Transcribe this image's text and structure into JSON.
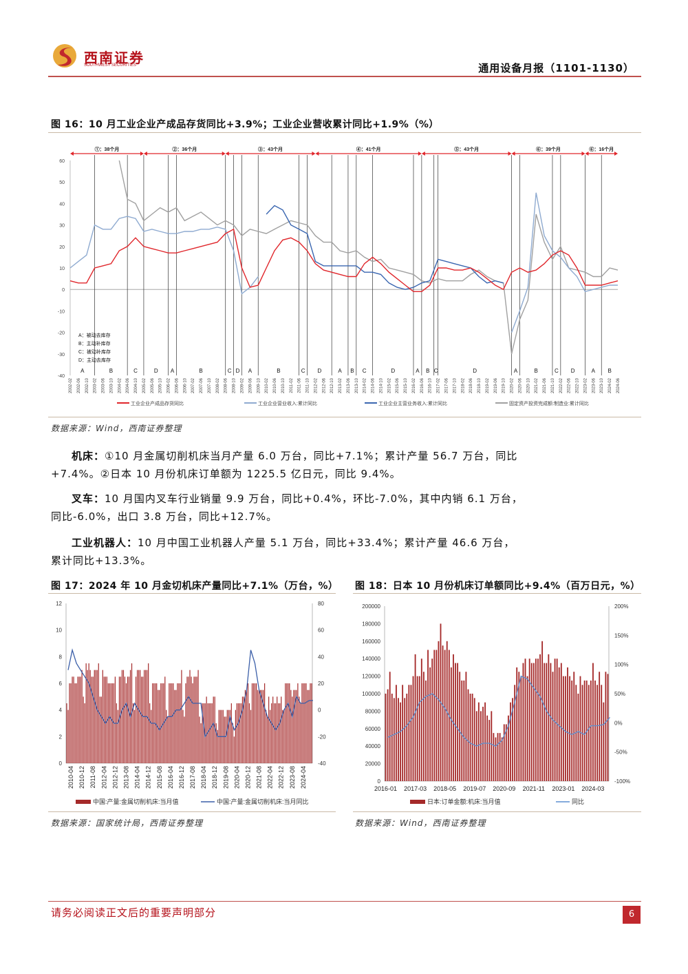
{
  "header": {
    "logo_cn": "西南证券",
    "logo_en": "SOUTHWEST SECURITIES",
    "doc_title": "通用设备月报（1101-1130）",
    "brand_color": "#b5121b"
  },
  "fig16": {
    "caption": "图 16：10 月工业企业产成品存货同比+3.9%；工业企业营收累计同比+1.9%（%）",
    "source": "数据来源：Wind，西南证券整理",
    "chart_data": {
      "type": "line",
      "yticks": [
        60,
        50,
        40,
        30,
        20,
        10,
        0,
        -10,
        -20,
        -30,
        -40
      ],
      "ylim": [
        -40,
        60
      ],
      "x": [
        "2002-02",
        "2002-06",
        "2002-10",
        "2003-02",
        "2003-06",
        "2003-10",
        "2004-02",
        "2004-06",
        "2004-10",
        "2005-02",
        "2005-06",
        "2005-10",
        "2006-02",
        "2006-06",
        "2006-10",
        "2007-02",
        "2007-06",
        "2007-10",
        "2008-02",
        "2008-06",
        "2008-10",
        "2009-02",
        "2009-06",
        "2009-10",
        "2010-02",
        "2010-06",
        "2010-10",
        "2011-02",
        "2011-06",
        "2011-10",
        "2012-02",
        "2012-06",
        "2012-10",
        "2013-02",
        "2013-06",
        "2013-10",
        "2014-02",
        "2014-06",
        "2014-10",
        "2015-02",
        "2015-06",
        "2015-10",
        "2016-02",
        "2016-06",
        "2016-10",
        "2017-02",
        "2017-06",
        "2017-10",
        "2018-02",
        "2018-06",
        "2018-10",
        "2019-02",
        "2019-06",
        "2019-10",
        "2020-02",
        "2020-06",
        "2020-10",
        "2021-02",
        "2021-06",
        "2021-10",
        "2022-02",
        "2022-06",
        "2022-10",
        "2023-02",
        "2023-06",
        "2023-10",
        "2024-02",
        "2024-06"
      ],
      "series": [
        {
          "name": "工业企业产成品存货同比",
          "color": "#e0262b",
          "values": [
            4,
            3,
            3,
            10,
            11,
            12,
            18,
            20,
            24,
            20,
            19,
            18,
            17,
            17,
            18,
            19,
            20,
            21,
            22,
            26,
            28,
            10,
            1,
            2,
            10,
            18,
            23,
            24,
            22,
            18,
            12,
            9,
            8,
            7,
            6,
            6,
            12,
            15,
            12,
            8,
            5,
            2,
            -1,
            -1,
            2,
            10,
            10,
            9,
            9,
            10,
            8,
            5,
            2,
            0,
            8,
            10,
            8,
            9,
            12,
            16,
            18,
            16,
            10,
            2,
            2,
            2,
            3,
            4
          ]
        },
        {
          "name": "工业企业营业收入:累计同比",
          "color": "#8eaad0",
          "values": [
            10,
            13,
            16,
            30,
            28,
            28,
            33,
            34,
            33,
            27,
            28,
            27,
            26,
            26,
            27,
            27,
            28,
            28,
            29,
            28,
            18,
            -2,
            1,
            6,
            null,
            null,
            null,
            null,
            null,
            null,
            null,
            null,
            null,
            null,
            null,
            null,
            null,
            null,
            null,
            null,
            null,
            null,
            null,
            null,
            null,
            null,
            null,
            null,
            null,
            null,
            null,
            null,
            null,
            null,
            -20,
            -10,
            1,
            45,
            25,
            18,
            15,
            10,
            6,
            -1,
            0,
            1,
            2,
            2
          ]
        },
        {
          "name": "工业企业主营业务收入:累计同比",
          "color": "#3a66b0",
          "values": [
            null,
            null,
            null,
            null,
            null,
            null,
            null,
            null,
            null,
            null,
            null,
            null,
            null,
            null,
            null,
            null,
            null,
            null,
            null,
            null,
            null,
            null,
            null,
            null,
            35,
            39,
            37,
            30,
            28,
            26,
            13,
            11,
            11,
            11,
            11,
            11,
            8,
            8,
            7,
            3,
            1,
            0,
            1,
            3,
            4,
            14,
            13,
            12,
            11,
            10,
            6,
            3,
            4,
            3,
            null,
            null,
            null,
            null,
            null,
            null,
            null,
            null,
            null,
            null,
            null,
            null,
            null,
            null
          ]
        },
        {
          "name": "固定资产投资完成额:制造业:累计同比",
          "color": "#a0a0a0",
          "values": [
            null,
            null,
            null,
            null,
            null,
            null,
            60,
            42,
            40,
            32,
            35,
            38,
            36,
            38,
            32,
            34,
            36,
            33,
            30,
            32,
            30,
            25,
            28,
            27,
            26,
            28,
            30,
            32,
            31,
            30,
            25,
            22,
            22,
            18,
            17,
            18,
            15,
            13,
            14,
            10,
            9,
            8,
            7,
            4,
            3,
            5,
            4,
            4,
            4,
            7,
            9,
            6,
            4,
            3,
            -30,
            -14,
            -5,
            35,
            22,
            14,
            20,
            10,
            9,
            8,
            6,
            6,
            10,
            9
          ]
        }
      ],
      "cycles": [
        {
          "label": "①：38个月",
          "start": "2002-02",
          "end": "2005-02"
        },
        {
          "label": "②：36个月",
          "start": "2005-02",
          "end": "2008-06"
        },
        {
          "label": "③：43个月",
          "start": "2008-06",
          "end": "2012-02"
        },
        {
          "label": "④：41个月",
          "start": "2012-02",
          "end": "2016-06"
        },
        {
          "label": "⑤：43个月",
          "start": "2016-06",
          "end": "2020-02"
        },
        {
          "label": "⑥：39个月",
          "start": "2020-02",
          "end": "2023-02"
        },
        {
          "label": "⑥：16个月",
          "start": "2023-02",
          "end": "2024-06"
        }
      ],
      "phases": [
        {
          "label": "A",
          "start": "2002-02"
        },
        {
          "label": "B",
          "start": "2003-02"
        },
        {
          "label": "C",
          "start": "2004-06"
        },
        {
          "label": "D",
          "start": "2005-02"
        },
        {
          "label": "A",
          "start": "2006-02"
        },
        {
          "label": "B",
          "start": "2006-06"
        },
        {
          "label": "C",
          "start": "2008-06"
        },
        {
          "label": "D",
          "start": "2008-10"
        },
        {
          "label": "A",
          "start": "2009-02"
        },
        {
          "label": "B",
          "start": "2009-10"
        },
        {
          "label": "C",
          "start": "2011-06"
        },
        {
          "label": "D",
          "start": "2011-10"
        },
        {
          "label": "A",
          "start": "2012-10"
        },
        {
          "label": "B",
          "start": "2013-06"
        },
        {
          "label": "C",
          "start": "2013-10"
        },
        {
          "label": "D",
          "start": "2014-06"
        },
        {
          "label": "A",
          "start": "2016-02"
        },
        {
          "label": "B",
          "start": "2016-06"
        },
        {
          "label": "C",
          "start": "2016-12"
        },
        {
          "label": "D",
          "start": "2017-02"
        },
        {
          "label": "A",
          "start": "2020-02"
        },
        {
          "label": "B",
          "start": "2020-06"
        },
        {
          "label": "C",
          "start": "2021-10"
        },
        {
          "label": "D",
          "start": "2022-02"
        },
        {
          "label": "A",
          "start": "2023-02"
        },
        {
          "label": "B",
          "start": "2023-10"
        }
      ],
      "phase_legend": [
        "A：被动去库存",
        "B：主动补库存",
        "C：被动补库存",
        "D：主动去库存"
      ]
    }
  },
  "paragraphs": [
    {
      "title": "机床：",
      "text": "①10 月金属切削机床当月产量 6.0 万台，同比+7.1%；累计产量 56.7 万台，同比+7.4%。②日本 10 月份机床订单额为 1225.5 亿日元，同比 9.4%。"
    },
    {
      "title": "叉车：",
      "text": "10 月国内叉车行业销量 9.9 万台，同比+0.4%，环比-7.0%，其中内销 6.1 万台，同比-6.0%，出口 3.8 万台，同比+12.7%。"
    },
    {
      "title": "工业机器人：",
      "text": "10 月中国工业机器人产量 5.1 万台，同比+33.4%；累计产量 46.6 万台，累计同比+13.3%。"
    }
  ],
  "fig17": {
    "caption": "图 17：2024 年 10 月金切机床产量同比+7.1%（万台，%）",
    "source": "数据来源：国家统计局，西南证券整理",
    "chart_data": {
      "type": "bar+line",
      "y_left_ticks": [
        12,
        10,
        8,
        6,
        4,
        2,
        0
      ],
      "y_left_lim": [
        0,
        12
      ],
      "y_right_ticks": [
        80,
        60,
        40,
        20,
        0,
        -20,
        -40
      ],
      "y_right_lim": [
        -40,
        80
      ],
      "xticks": [
        "2010-04",
        "2010-12",
        "2011-08",
        "2012-04",
        "2012-12",
        "2013-08",
        "2014-04",
        "2014-12",
        "2015-08",
        "2016-04",
        "2016-12",
        "2017-08",
        "2018-04",
        "2018-12",
        "2019-08",
        "2020-04",
        "2020-12",
        "2021-08",
        "2022-04",
        "2022-12",
        "2023-08",
        "2024-04"
      ],
      "x_start": "2010-01",
      "x_end": "2024-10",
      "bars": {
        "name": "中国:产量:金属切削机床:当月值",
        "color": "#a52a2a",
        "frequency": "monthly",
        "values": [
          4.5,
          4,
          6,
          6,
          6.5,
          6.5,
          6,
          6,
          6.5,
          6.5,
          6.5,
          7,
          5,
          4.5,
          7.5,
          7,
          7.5,
          7,
          6.5,
          6.5,
          7,
          7,
          7,
          7.5,
          5,
          5,
          7,
          6.5,
          6.5,
          6.5,
          6,
          6,
          6,
          6,
          6,
          6.5,
          4.5,
          4,
          6.5,
          6.5,
          7,
          7,
          6.5,
          6,
          6.5,
          6.5,
          7,
          7.5,
          4.5,
          4,
          6.5,
          7,
          7,
          7,
          6.5,
          6.5,
          7,
          7,
          7,
          7.5,
          4.5,
          4,
          6,
          6,
          6,
          6,
          5.5,
          5.5,
          6,
          6,
          6,
          6.5,
          4,
          3.5,
          6,
          6,
          6,
          6,
          5.5,
          5.5,
          6,
          6,
          6,
          7,
          4,
          3.5,
          6,
          6.5,
          6.5,
          7,
          6.5,
          6,
          6.5,
          6.5,
          6.5,
          7,
          3.5,
          3,
          4.5,
          4.5,
          4.5,
          5,
          4.5,
          4.5,
          4.5,
          4.5,
          5,
          5,
          3,
          2.5,
          4,
          4,
          4,
          4,
          3.5,
          3.5,
          4,
          4,
          4,
          4.5,
          3,
          2,
          4,
          4.5,
          4.5,
          4.5,
          4.5,
          5,
          5,
          5.5,
          5.5,
          6,
          4.5,
          4,
          6,
          6,
          6,
          6,
          5.5,
          5.5,
          5.5,
          5.5,
          5.5,
          6,
          4,
          3.5,
          5,
          4,
          4.5,
          5,
          4.5,
          4.5,
          5,
          4.5,
          4.5,
          5,
          4,
          4,
          6,
          6,
          6,
          6,
          5.5,
          5,
          5.5,
          5.5,
          5.5,
          6,
          5,
          4.5,
          6,
          6,
          6,
          6,
          5.5,
          5.5,
          6,
          6
        ]
      },
      "line": {
        "name": "中国:产量:金属切削机床:当月同比",
        "color": "#3a5ea8",
        "frequency": "quarterly",
        "values": [
          30,
          45,
          35,
          30,
          25,
          20,
          10,
          0,
          -5,
          -10,
          -5,
          -10,
          -10,
          0,
          5,
          -5,
          5,
          0,
          -5,
          -5,
          -10,
          -10,
          -15,
          -10,
          -5,
          -5,
          0,
          0,
          5,
          10,
          5,
          5,
          5,
          -20,
          -15,
          -10,
          -20,
          -20,
          -20,
          -5,
          -15,
          -10,
          0,
          15,
          45,
          35,
          15,
          5,
          -5,
          -10,
          -15,
          -10,
          0,
          5,
          -5,
          10,
          5,
          5,
          7,
          7.1
        ]
      }
    }
  },
  "fig18": {
    "caption": "图 18：日本 10 月份机床订单额同比+9.4%（百万日元，%）",
    "source": "数据来源：Wind，西南证券整理",
    "chart_data": {
      "type": "bar+line",
      "y_left_ticks": [
        200000,
        180000,
        160000,
        140000,
        120000,
        100000,
        80000,
        60000,
        40000,
        20000,
        0
      ],
      "y_left_lim": [
        0,
        200000
      ],
      "y_right_ticks": [
        "200%",
        "150%",
        "100%",
        "50%",
        "0%",
        "-50%",
        "-100%"
      ],
      "y_right_lim": [
        -100,
        200
      ],
      "xticks": [
        "2016-01",
        "2017-03",
        "2018-05",
        "2019-07",
        "2020-09",
        "2021-11",
        "2023-01",
        "2024-03"
      ],
      "x_start": "2016-01",
      "x_end": "2024-10",
      "bars": {
        "name": "日本:订单金额:机床:当月值",
        "color": "#a52a2a",
        "frequency": "monthly",
        "values": [
          100000,
          105000,
          125000,
          100000,
          95000,
          110000,
          95000,
          90000,
          110000,
          95000,
          100000,
          110000,
          110000,
          120000,
          145000,
          120000,
          120000,
          140000,
          125000,
          115000,
          150000,
          130000,
          140000,
          150000,
          150000,
          160000,
          180000,
          155000,
          150000,
          160000,
          150000,
          130000,
          145000,
          135000,
          135000,
          125000,
          115000,
          115000,
          125000,
          105000,
          100000,
          100000,
          95000,
          80000,
          90000,
          80000,
          85000,
          90000,
          75000,
          70000,
          80000,
          55000,
          50000,
          55000,
          55000,
          50000,
          65000,
          65000,
          75000,
          90000,
          95000,
          110000,
          130000,
          125000,
          120000,
          135000,
          140000,
          120000,
          140000,
          135000,
          135000,
          140000,
          140000,
          145000,
          160000,
          135000,
          135000,
          145000,
          135000,
          125000,
          140000,
          140000,
          130000,
          135000,
          120000,
          120000,
          130000,
          120000,
          115000,
          125000,
          110000,
          100000,
          120000,
          110000,
          115000,
          115000,
          110000,
          115000,
          135000,
          115000,
          110000,
          125000,
          110000,
          90000,
          125000,
          122550
        ]
      },
      "line": {
        "name": "同比",
        "color": "#5b8fd0",
        "frequency": "quarterly",
        "values": [
          -25,
          -20,
          -15,
          -5,
          10,
          35,
          45,
          50,
          40,
          25,
          5,
          -10,
          -25,
          -35,
          -40,
          -35,
          -35,
          -40,
          -30,
          -5,
          35,
          80,
          75,
          60,
          45,
          20,
          5,
          -5,
          -15,
          -20,
          -15,
          -20,
          -5,
          -5,
          -3,
          9.4
        ]
      }
    }
  },
  "footer": {
    "disclaimer": "请务必阅读正文后的重要声明部分",
    "page": "6"
  }
}
